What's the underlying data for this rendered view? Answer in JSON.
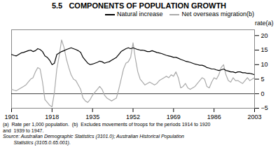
{
  "chart_data": {
    "type": "line",
    "title": "5.5   COMPONENTS OF POPULATION GROWTH",
    "ylabel": "rate(a)",
    "x": [
      1901,
      1902,
      1903,
      1904,
      1905,
      1906,
      1907,
      1908,
      1909,
      1910,
      1911,
      1912,
      1913,
      1914,
      1915,
      1916,
      1917,
      1918,
      1919,
      1920,
      1921,
      1922,
      1923,
      1924,
      1925,
      1926,
      1927,
      1928,
      1929,
      1930,
      1931,
      1932,
      1933,
      1934,
      1935,
      1936,
      1937,
      1938,
      1939,
      1940,
      1941,
      1942,
      1943,
      1944,
      1945,
      1946,
      1947,
      1948,
      1949,
      1950,
      1951,
      1952,
      1953,
      1954,
      1955,
      1956,
      1957,
      1958,
      1959,
      1960,
      1961,
      1962,
      1963,
      1964,
      1965,
      1966,
      1967,
      1968,
      1969,
      1970,
      1971,
      1972,
      1973,
      1974,
      1975,
      1976,
      1977,
      1978,
      1979,
      1980,
      1981,
      1982,
      1983,
      1984,
      1985,
      1986,
      1987,
      1988,
      1989,
      1990,
      1991,
      1992,
      1993,
      1994,
      1995,
      1996,
      1997,
      1998,
      1999,
      2000,
      2001,
      2002,
      2003
    ],
    "series": [
      {
        "name": "Natural increase",
        "color": "#000000",
        "values": [
          13.5,
          13.2,
          13.0,
          13.5,
          14.0,
          14.2,
          14.5,
          14.8,
          15.0,
          14.5,
          14.8,
          15.5,
          15.2,
          14.5,
          13.0,
          12.5,
          11.5,
          10.0,
          10.5,
          13.5,
          14.0,
          14.5,
          14.8,
          15.2,
          15.5,
          15.8,
          15.5,
          15.2,
          14.8,
          14.2,
          12.5,
          11.5,
          10.5,
          10.0,
          10.2,
          10.5,
          10.8,
          11.2,
          11.0,
          10.5,
          10.8,
          11.0,
          11.5,
          12.0,
          12.5,
          13.5,
          14.5,
          15.0,
          15.5,
          15.8,
          15.5,
          15.8,
          15.5,
          15.2,
          15.0,
          15.0,
          14.8,
          14.5,
          14.5,
          14.8,
          14.5,
          14.2,
          14.0,
          13.8,
          13.5,
          13.2,
          13.0,
          12.8,
          12.5,
          12.5,
          12.2,
          11.8,
          11.5,
          11.2,
          11.0,
          10.8,
          10.5,
          10.2,
          10.0,
          9.8,
          9.8,
          9.5,
          9.0,
          8.8,
          8.5,
          8.5,
          8.2,
          8.0,
          8.2,
          8.5,
          8.0,
          7.8,
          7.5,
          7.5,
          7.2,
          7.5,
          7.5,
          7.2,
          7.2,
          7.0,
          7.0,
          6.8,
          6.5
        ]
      },
      {
        "name": "Net overseas migration(b)",
        "color": "#aaaaaa",
        "values": [
          1.5,
          1.2,
          1.0,
          1.5,
          2.0,
          2.5,
          3.0,
          4.0,
          5.0,
          5.5,
          7.5,
          9.0,
          8.5,
          4.0,
          -2.0,
          -3.0,
          -4.0,
          -4.5,
          0.5,
          8.5,
          13.0,
          18.5,
          16.0,
          12.0,
          9.0,
          6.5,
          5.0,
          4.5,
          3.0,
          1.5,
          -1.5,
          -2.5,
          -3.0,
          -2.0,
          -0.5,
          0.5,
          1.5,
          2.5,
          1.5,
          -0.5,
          -1.5,
          -2.0,
          -2.5,
          -2.0,
          -1.5,
          1.5,
          5.0,
          8.5,
          10.5,
          11.0,
          12.5,
          17.5,
          12.0,
          7.5,
          5.0,
          4.0,
          3.0,
          3.5,
          4.0,
          3.5,
          3.0,
          3.5,
          4.5,
          5.0,
          5.5,
          6.0,
          5.5,
          6.5,
          6.0,
          7.5,
          5.5,
          2.0,
          2.5,
          3.5,
          2.0,
          1.5,
          2.0,
          2.5,
          3.5,
          4.5,
          5.5,
          5.0,
          2.5,
          2.0,
          4.0,
          5.5,
          5.0,
          6.5,
          9.0,
          10.0,
          6.5,
          4.5,
          4.0,
          5.5,
          4.5,
          4.5,
          4.0,
          3.5,
          4.5,
          5.5,
          4.5,
          5.0,
          5.5
        ]
      }
    ],
    "xlim": [
      1901,
      2003
    ],
    "ylim": [
      -5,
      22
    ],
    "xticks": [
      1901,
      1918,
      1935,
      1952,
      1969,
      1986,
      2003
    ],
    "yticks": [
      -5,
      0,
      5,
      10,
      15,
      20
    ],
    "annotations": [
      "(a)  Rate per 1,000 population.  (b)  Excludes movements of troops for the periods 1914 to 1920",
      "and  1939 to 1947.",
      "Source: Australian Demographic Statistics (3101.0); Australian Historical Population",
      "        Statistics (3105.0.65.001)."
    ]
  }
}
